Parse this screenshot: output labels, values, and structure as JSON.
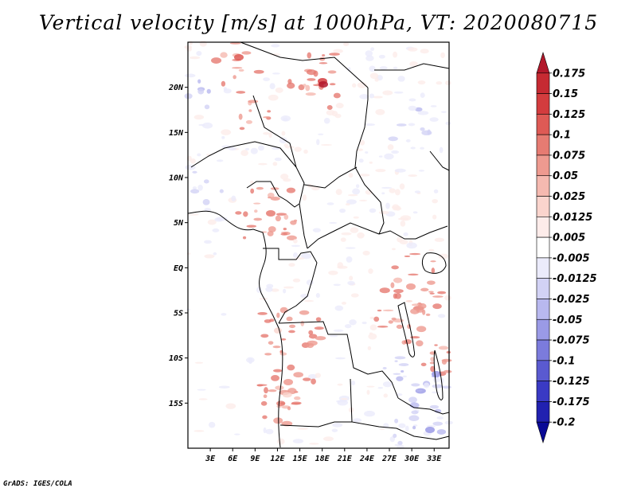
{
  "title": "Vertical velocity [m/s] at 1000hPa, VT: 2020080715",
  "credit": "GrADS: IGES/COLA",
  "map": {
    "lat_labels": [
      "20N",
      "15N",
      "10N",
      "5N",
      "EQ",
      "5S",
      "10S",
      "15S"
    ],
    "lat_values": [
      20,
      15,
      10,
      5,
      0,
      -5,
      -10,
      -15
    ],
    "lon_labels": [
      "3E",
      "6E",
      "9E",
      "12E",
      "15E",
      "18E",
      "21E",
      "24E",
      "27E",
      "30E",
      "33E"
    ],
    "lon_values": [
      3,
      6,
      9,
      12,
      15,
      18,
      21,
      24,
      27,
      30,
      33
    ],
    "lat_range": [
      -20,
      25
    ],
    "lon_range": [
      0,
      35
    ]
  },
  "colorbar": {
    "labels": [
      "0.175",
      "0.15",
      "0.125",
      "0.1",
      "0.075",
      "0.05",
      "0.025",
      "0.0125",
      "0.005",
      "-0.005",
      "-0.0125",
      "-0.025",
      "-0.05",
      "-0.075",
      "-0.1",
      "-0.125",
      "-0.175",
      "-0.2"
    ],
    "colors": [
      "#b2182b",
      "#c62a32",
      "#d33c3e",
      "#de5a55",
      "#e67b72",
      "#ee9a90",
      "#f5b9b0",
      "#fad4cd",
      "#fdecea",
      "#ffffff",
      "#ebebfb",
      "#d2d2f5",
      "#b8b8ef",
      "#9a9ae6",
      "#7b7bdc",
      "#5a5ad0",
      "#3a3ac4",
      "#2121b0",
      "#0a0a96"
    ]
  }
}
